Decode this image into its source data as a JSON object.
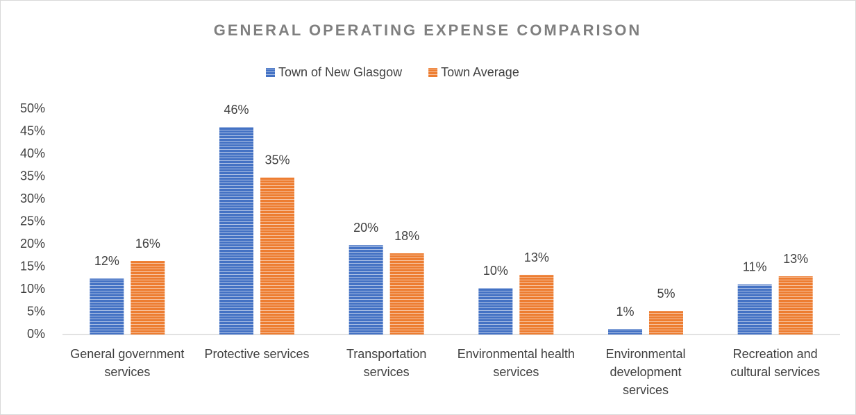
{
  "chart_data": {
    "type": "bar",
    "title": "GENERAL OPERATING EXPENSE COMPARISON",
    "categories": [
      "General government services",
      "Protective services",
      "Transportation services",
      "Environmental health services",
      "Environmental development services",
      "Recreation and cultural services"
    ],
    "series": [
      {
        "name": "Town of New Glasgow",
        "color": "#4472c4",
        "values": [
          12.4,
          46,
          19.8,
          10.3,
          1.2,
          11.1
        ],
        "value_labels": [
          "12%",
          "46%",
          "20%",
          "10%",
          "1%",
          "11%"
        ]
      },
      {
        "name": "Town Average",
        "color": "#ed7d31",
        "values": [
          16.3,
          34.8,
          18,
          13.2,
          5.2,
          12.9
        ],
        "value_labels": [
          "16%",
          "35%",
          "18%",
          "13%",
          "5%",
          "13%"
        ]
      }
    ],
    "ylim": [
      0,
      50
    ],
    "yticks": [
      {
        "value": 0,
        "label": "0%"
      },
      {
        "value": 5,
        "label": "5%"
      },
      {
        "value": 10,
        "label": "10%"
      },
      {
        "value": 15,
        "label": "15%"
      },
      {
        "value": 20,
        "label": "20%"
      },
      {
        "value": 25,
        "label": "25%"
      },
      {
        "value": 30,
        "label": "30%"
      },
      {
        "value": 35,
        "label": "35%"
      },
      {
        "value": 40,
        "label": "40%"
      },
      {
        "value": 45,
        "label": "45%"
      },
      {
        "value": 50,
        "label": "50%"
      }
    ],
    "grid": false,
    "legend": "top"
  }
}
